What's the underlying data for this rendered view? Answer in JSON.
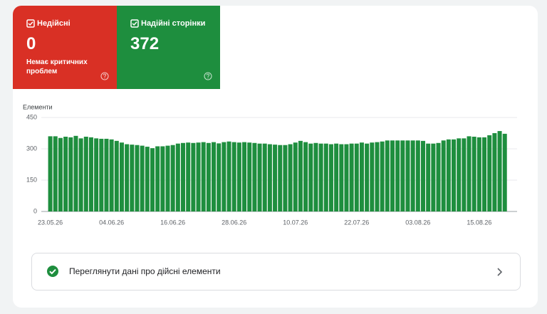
{
  "tiles": [
    {
      "label": "Недійсні",
      "value": 0,
      "note": "Немає критичних проблем"
    },
    {
      "label": "Надійні сторінки",
      "value": 372
    }
  ],
  "chart_data": {
    "type": "bar",
    "y_label": "Елементи",
    "categories": [
      "23.05.26",
      null,
      null,
      null,
      null,
      null,
      null,
      null,
      null,
      null,
      null,
      null,
      "04.06.26",
      null,
      null,
      null,
      null,
      null,
      null,
      null,
      null,
      null,
      null,
      null,
      "16.06.26",
      null,
      null,
      null,
      null,
      null,
      null,
      null,
      null,
      null,
      null,
      null,
      "28.06.26",
      null,
      null,
      null,
      null,
      null,
      null,
      null,
      null,
      null,
      null,
      null,
      "10.07.26",
      null,
      null,
      null,
      null,
      null,
      null,
      null,
      null,
      null,
      null,
      null,
      "22.07.26",
      null,
      null,
      null,
      null,
      null,
      null,
      null,
      null,
      null,
      null,
      null,
      "03.08.26",
      null,
      null,
      null,
      null,
      null,
      null,
      null,
      null,
      null,
      null,
      null,
      "15.08.26",
      null,
      null,
      null,
      null,
      null
    ],
    "values": [
      360,
      360,
      352,
      358,
      355,
      362,
      350,
      358,
      355,
      350,
      348,
      348,
      345,
      338,
      330,
      322,
      320,
      318,
      315,
      310,
      303,
      312,
      312,
      315,
      318,
      325,
      328,
      330,
      328,
      330,
      332,
      328,
      332,
      326,
      332,
      335,
      332,
      330,
      332,
      330,
      328,
      325,
      325,
      322,
      320,
      318,
      318,
      322,
      330,
      338,
      332,
      325,
      328,
      325,
      325,
      322,
      325,
      322,
      322,
      325,
      325,
      330,
      325,
      330,
      332,
      335,
      340,
      340,
      340,
      340,
      340,
      340,
      340,
      338,
      325,
      325,
      328,
      340,
      345,
      345,
      350,
      350,
      360,
      358,
      355,
      355,
      365,
      375,
      385,
      372
    ],
    "color": "#1e8e3e",
    "ylim": [
      0,
      450
    ],
    "yticks": [
      0,
      150,
      300,
      450
    ],
    "grid": true
  },
  "link": {
    "label": "Переглянути дані про дійсні елементи"
  }
}
